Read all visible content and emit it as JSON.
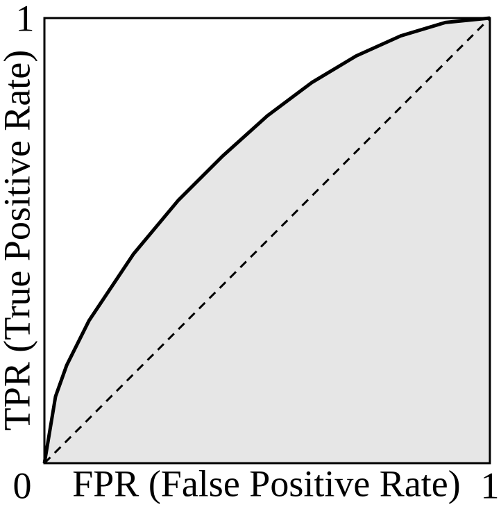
{
  "chart_data": {
    "type": "line",
    "x_label": "FPR (False Positive Rate)",
    "y_label": "TPR (True Positive Rate)",
    "xlim": [
      0,
      1
    ],
    "ylim": [
      0,
      1
    ],
    "xticks": [
      0,
      1
    ],
    "yticks": [
      1
    ],
    "area_fill": "#e6e6e6",
    "series": [
      {
        "color": "#000000",
        "dashed": false,
        "fill_under": true,
        "x": [
          0,
          0.025,
          0.05,
          0.1,
          0.2,
          0.3,
          0.4,
          0.5,
          0.6,
          0.7,
          0.8,
          0.9,
          1
        ],
        "values": [
          0,
          0.15,
          0.22,
          0.32,
          0.47,
          0.59,
          0.69,
          0.78,
          0.855,
          0.915,
          0.96,
          0.99,
          1
        ]
      },
      {
        "color": "#000000",
        "dashed": true,
        "fill_under": false,
        "x": [
          0,
          1
        ],
        "values": [
          0,
          1
        ]
      }
    ]
  }
}
